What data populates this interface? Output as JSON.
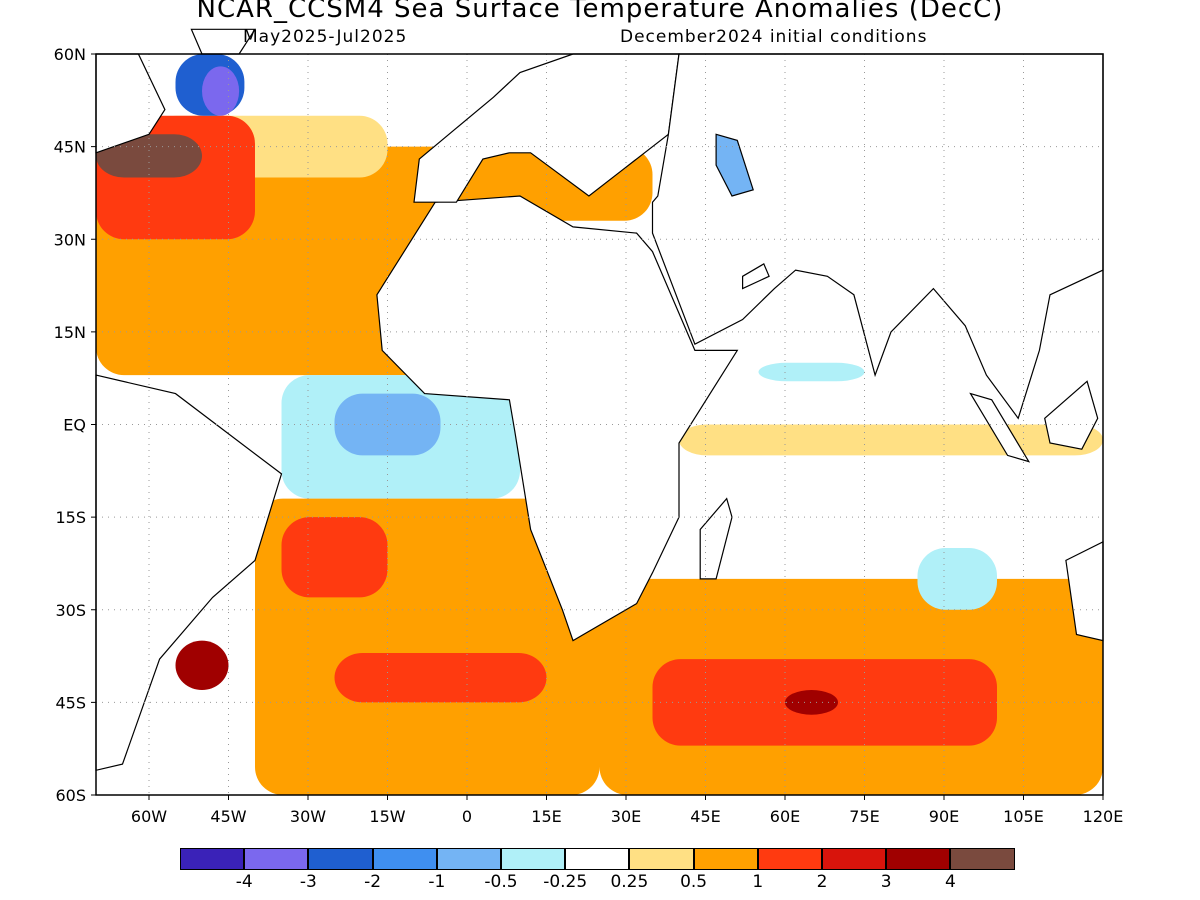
{
  "title": "NCAR_CCSM4 Sea Surface Temperature Anomalies (DecC)",
  "subtitle_left": "May2025-Jul2025",
  "subtitle_right": "December2024 initial conditions",
  "lat_labels": [
    "60N",
    "45N",
    "30N",
    "15N",
    "EQ",
    "15S",
    "30S",
    "45S",
    "60S"
  ],
  "lon_labels": [
    "60W",
    "45W",
    "30W",
    "15W",
    "0",
    "15E",
    "30E",
    "45E",
    "60E",
    "75E",
    "90E",
    "105E",
    "120E"
  ],
  "colorbar": {
    "colors": [
      "#3a22b8",
      "#7b68ee",
      "#1f5fd0",
      "#3f8ff0",
      "#74b4f4",
      "#b0f0f8",
      "#ffffff",
      "#ffe084",
      "#ffa000",
      "#ff3a10",
      "#d8140c",
      "#a00000",
      "#7a4a3e"
    ],
    "labels": [
      "-4",
      "-3",
      "-2",
      "-1",
      "-0.5",
      "-0.25",
      "0.25",
      "0.5",
      "1",
      "2",
      "3",
      "4"
    ]
  }
}
